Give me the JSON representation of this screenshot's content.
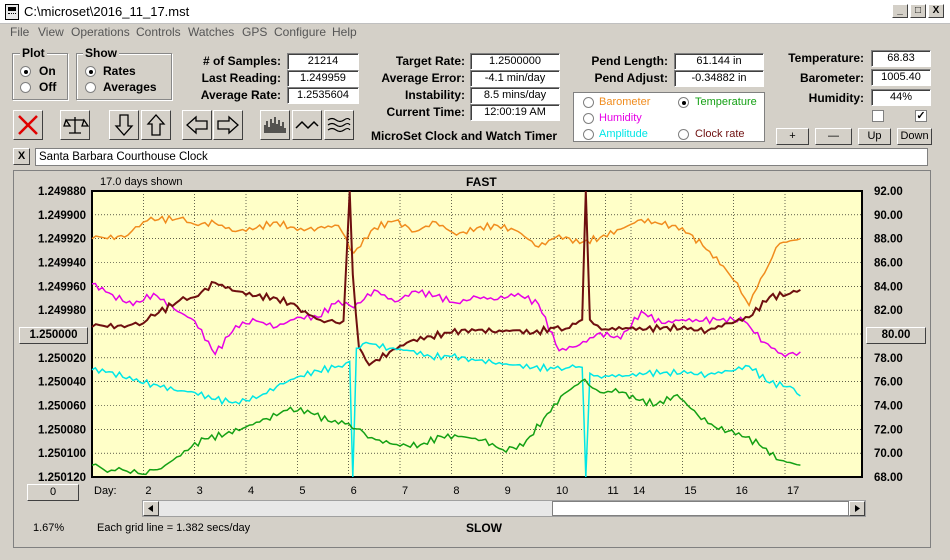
{
  "window": {
    "title": "C:\\microset\\2016_11_17.mst",
    "minimize": "_",
    "maximize": "□",
    "close": "X"
  },
  "menu": [
    "File",
    "View",
    "Operations",
    "Controls",
    "Watches",
    "GPS",
    "Configure",
    "Help"
  ],
  "plot_group": {
    "label": "Plot",
    "options": [
      "On",
      "Off"
    ],
    "selected": "On"
  },
  "show_group": {
    "label": "Show",
    "options": [
      "Rates",
      "Averages"
    ],
    "selected": "Rates"
  },
  "stats": {
    "samples_label": "# of Samples:",
    "samples": "21214",
    "last_reading_label": "Last Reading:",
    "last_reading": "1.249959",
    "average_rate_label": "Average Rate:",
    "average_rate": "1.2535604",
    "target_rate_label": "Target Rate:",
    "target_rate": "1.2500000",
    "average_error_label": "Average Error:",
    "average_error": "-4.1 min/day",
    "instability_label": "Instability:",
    "instability": "8.5 mins/day",
    "current_time_label": "Current Time:",
    "current_time": "12:00:19 AM",
    "pend_length_label": "Pend Length:",
    "pend_length": "61.144 in",
    "pend_adjust_label": "Pend Adjust:",
    "pend_adjust": "-0.34882 in",
    "temperature_label": "Temperature:",
    "temperature": "68.83",
    "barometer_label": "Barometer:",
    "barometer": "1005.40",
    "humidity_label": "Humidity:",
    "humidity": "44%"
  },
  "app_caption": "MicroSet Clock and Watch Timer",
  "sensor_options": [
    {
      "label": "Barometer",
      "color": "#f08c1e",
      "selected": false
    },
    {
      "label": "Temperature",
      "color": "#14a014",
      "selected": true
    },
    {
      "label": "Humidity",
      "color": "#e600e6",
      "selected": false
    },
    {
      "label": "Clock rate",
      "color": "#6e0f0f",
      "selected": false
    },
    {
      "label": "Amplitude",
      "color": "#00e6e6",
      "selected": false
    }
  ],
  "checkboxes": [
    false,
    true
  ],
  "adjust_buttons": [
    "+",
    "—",
    "Up",
    "Down"
  ],
  "toolbar_icons": [
    "clear-icon",
    "balance-scale-icon",
    "arrow-down-icon",
    "arrow-up-icon",
    "arrow-left-icon",
    "arrow-right-icon",
    "histogram-icon",
    "wave-icon",
    "multi-wave-icon"
  ],
  "clock_name": "Santa Barbara Courthouse Clock",
  "clock_close": "X",
  "chart": {
    "days_shown": "17.0 days shown",
    "top_label": "FAST",
    "bottom_label": "SLOW",
    "grid_note": "Each grid line = 1.382 secs/day",
    "percent": "1.67%",
    "left_button": "1.250000",
    "right_button": "80.00",
    "zero_button": "0",
    "day_label": "Day:"
  },
  "chart_data": {
    "type": "line",
    "left_axis_ticks": [
      "1.249880",
      "1.249900",
      "1.249920",
      "1.249940",
      "1.249960",
      "1.249980",
      "1.250000",
      "1.250020",
      "1.250040",
      "1.250060",
      "1.250080",
      "1.250100",
      "1.250120"
    ],
    "right_axis_ticks": [
      "92.00",
      "90.00",
      "88.00",
      "86.00",
      "84.00",
      "82.00",
      "80.00",
      "78.00",
      "76.00",
      "74.00",
      "72.00",
      "70.00",
      "68.00"
    ],
    "x_ticks": [
      "2",
      "3",
      "4",
      "5",
      "6",
      "7",
      "8",
      "9",
      "10",
      "11",
      "14",
      "15",
      "16",
      "17"
    ],
    "x_tick_positions_days": [
      2,
      3,
      4,
      5,
      6,
      7,
      8,
      9,
      10,
      11,
      11.5,
      12.5,
      13.5,
      14.5
    ],
    "x_range_days": [
      1,
      16
    ],
    "right_range": [
      68,
      92
    ],
    "series": [
      {
        "name": "Barometer",
        "color": "#f08c1e",
        "x": [
          1,
          1.3,
          1.7,
          2,
          2.3,
          2.7,
          3,
          3.4,
          3.8,
          4.2,
          4.6,
          5,
          5.4,
          5.8,
          6.1,
          6.5,
          6.9,
          7.3,
          7.7,
          8.1,
          8.5,
          8.9,
          9.3,
          9.7,
          10.1,
          10.5,
          10.9,
          11.3,
          11.7,
          12.1,
          12.5,
          12.9,
          13.3,
          13.5,
          13.8,
          14.1,
          14.4,
          14.8
        ],
        "values": [
          88,
          88,
          88.3,
          89.4,
          89.6,
          89.7,
          89.2,
          89.3,
          88.6,
          88.9,
          89.4,
          88.7,
          88.9,
          89.1,
          86.8,
          88.9,
          89.5,
          88.6,
          89.4,
          88.3,
          88.9,
          89.1,
          88.6,
          87.3,
          88.3,
          87.6,
          88.1,
          88.8,
          89.6,
          89.2,
          88.9,
          87.4,
          85.7,
          84.5,
          82.4,
          85.1,
          87.6,
          88
        ]
      },
      {
        "name": "Humidity",
        "color": "#e600e6",
        "x": [
          1,
          1.4,
          1.8,
          2.2,
          2.6,
          3,
          3.4,
          3.8,
          4.2,
          4.6,
          5,
          5.4,
          5.8,
          6.1,
          6.5,
          6.9,
          7.3,
          7.7,
          8.1,
          8.5,
          8.9,
          9.3,
          9.7,
          10.1,
          10.5,
          10.9,
          11.3,
          11.7,
          12.1,
          12.5,
          12.9,
          13.3,
          13.7,
          14.1,
          14.5,
          14.8
        ],
        "values": [
          84.2,
          83.3,
          82.4,
          83.4,
          82.1,
          81.1,
          78.3,
          80.7,
          81.1,
          80.6,
          81.4,
          81.4,
          82.8,
          82.2,
          83.7,
          82.7,
          83.6,
          83.2,
          82.6,
          83.1,
          82.9,
          83.4,
          82.5,
          78.6,
          79.1,
          80.1,
          79.6,
          81.9,
          80.9,
          81.2,
          81.1,
          81.3,
          81.1,
          79.3,
          78.1,
          78.5
        ]
      },
      {
        "name": "Clock rate",
        "color": "#6e0f0f",
        "x": [
          1,
          1.3,
          1.7,
          2,
          2.3,
          2.7,
          3,
          3.4,
          3.8,
          4.2,
          4.6,
          5,
          5.3,
          5.6,
          5.9,
          6.02,
          6.08,
          6.2,
          6.4,
          6.8,
          7.2,
          7.6,
          8,
          8.4,
          8.8,
          9.2,
          9.6,
          10,
          10.3,
          10.55,
          10.62,
          10.7,
          11,
          11.4,
          11.8,
          12.2,
          12.6,
          13,
          13.4,
          13.8,
          14.2,
          14.6,
          14.8
        ],
        "values": [
          80.6,
          80.6,
          80.7,
          80.9,
          81.8,
          82.8,
          83.1,
          84.3,
          83.6,
          83.2,
          83,
          82.3,
          81.5,
          81.1,
          81.1,
          92,
          85,
          78.9,
          77.4,
          78.5,
          79.4,
          79.8,
          80.1,
          80.4,
          80.2,
          80.3,
          80.1,
          80.5,
          80.5,
          81.2,
          92,
          81.2,
          80.4,
          80.5,
          80.4,
          80.6,
          80.4,
          80.3,
          80.9,
          81.4,
          83.1,
          83.4,
          83.7
        ]
      },
      {
        "name": "Amplitude",
        "color": "#00e6e6",
        "x": [
          1,
          1.4,
          1.8,
          2.2,
          2.6,
          3,
          3.4,
          3.8,
          4.2,
          4.6,
          5,
          5.4,
          5.8,
          6.02,
          6.08,
          6.15,
          6.4,
          6.8,
          7.2,
          7.6,
          8,
          8.4,
          8.8,
          9.2,
          9.6,
          10,
          10.3,
          10.55,
          10.62,
          10.7,
          11,
          11.4,
          11.8,
          12.2,
          12.6,
          13,
          13.4,
          13.8,
          14.2,
          14.6,
          14.8
        ],
        "values": [
          77,
          76.8,
          76.1,
          75.8,
          75.3,
          75.1,
          74.5,
          74.3,
          74.6,
          75.6,
          76.4,
          76.9,
          77.3,
          77.7,
          68,
          78.8,
          79.2,
          78.8,
          78.6,
          78.1,
          78.1,
          77.9,
          77.6,
          77.4,
          77.2,
          77.1,
          77.2,
          77.2,
          68,
          76.7,
          76.5,
          76.5,
          76.7,
          76.8,
          76.7,
          76.6,
          76.9,
          77.3,
          75.9,
          75.6,
          74.8
        ]
      },
      {
        "name": "Temperature",
        "color": "#14a014",
        "x": [
          1,
          1.3,
          1.6,
          1.9,
          2.2,
          2.5,
          2.8,
          3.2,
          3.6,
          4,
          4.4,
          4.8,
          5.2,
          5.6,
          6,
          6.3,
          6.6,
          7,
          7.4,
          7.8,
          8.2,
          8.6,
          9,
          9.4,
          9.8,
          10.2,
          10.6,
          10.9,
          11.2,
          11.6,
          12,
          12.4,
          12.8,
          13.2,
          13.6,
          14,
          14.4,
          14.8
        ],
        "values": [
          69,
          68.4,
          68.6,
          68.3,
          68.6,
          69.2,
          70.2,
          71.2,
          71.6,
          72.2,
          72.9,
          73.6,
          73.6,
          72.7,
          72.5,
          71.7,
          71.1,
          70.6,
          70.7,
          71.4,
          71.4,
          71.1,
          70.3,
          70.6,
          72.9,
          75,
          76.2,
          75.1,
          75.4,
          74.5,
          74.1,
          74.9,
          73.2,
          72,
          71.7,
          70.7,
          69.4,
          69
        ]
      }
    ]
  }
}
